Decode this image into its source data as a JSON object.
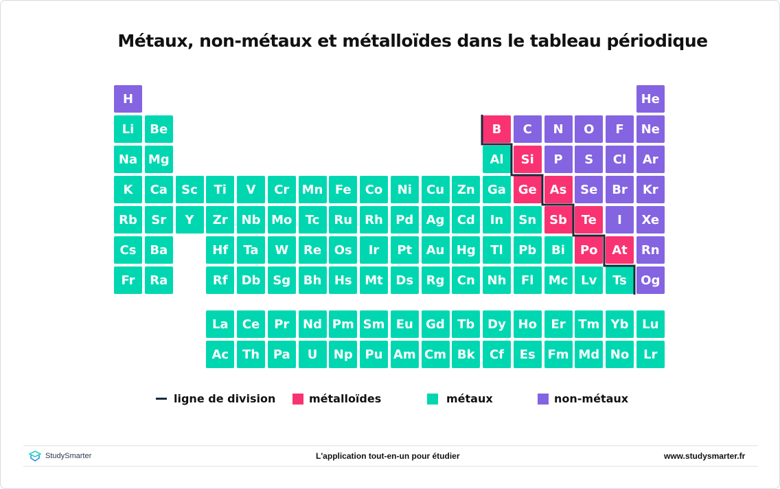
{
  "title": "Métaux, non-métaux et métalloïdes dans le tableau périodique",
  "colors": {
    "metal": "#00d7b1",
    "metalloid": "#f93371",
    "nonmetal": "#8464e1",
    "division_line": "#1b2a3c"
  },
  "rows": [
    [
      "H",
      "",
      "",
      "",
      "",
      "",
      "",
      "",
      "",
      "",
      "",
      "",
      "",
      "",
      "",
      "",
      "",
      "He"
    ],
    [
      "Li",
      "Be",
      "",
      "",
      "",
      "",
      "",
      "",
      "",
      "",
      "",
      "",
      "B",
      "C",
      "N",
      "O",
      "F",
      "Ne"
    ],
    [
      "Na",
      "Mg",
      "",
      "",
      "",
      "",
      "",
      "",
      "",
      "",
      "",
      "",
      "Al",
      "Si",
      "P",
      "S",
      "Cl",
      "Ar"
    ],
    [
      "K",
      "Ca",
      "Sc",
      "Ti",
      "V",
      "Cr",
      "Mn",
      "Fe",
      "Co",
      "Ni",
      "Cu",
      "Zn",
      "Ga",
      "Ge",
      "As",
      "Se",
      "Br",
      "Kr"
    ],
    [
      "Rb",
      "Sr",
      "Y",
      "Zr",
      "Nb",
      "Mo",
      "Tc",
      "Ru",
      "Rh",
      "Pd",
      "Ag",
      "Cd",
      "In",
      "Sn",
      "Sb",
      "Te",
      "I",
      "Xe"
    ],
    [
      "Cs",
      "Ba",
      "",
      "Hf",
      "Ta",
      "W",
      "Re",
      "Os",
      "Ir",
      "Pt",
      "Au",
      "Hg",
      "Tl",
      "Pb",
      "Bi",
      "Po",
      "At",
      "Rn"
    ],
    [
      "Fr",
      "Ra",
      "",
      "Rf",
      "Db",
      "Sg",
      "Bh",
      "Hs",
      "Mt",
      "Ds",
      "Rg",
      "Cn",
      "Nh",
      "Fl",
      "Mc",
      "Lv",
      "Ts",
      "Og"
    ]
  ],
  "f_block": [
    [
      "La",
      "Ce",
      "Pr",
      "Nd",
      "Pm",
      "Sm",
      "Eu",
      "Gd",
      "Tb",
      "Dy",
      "Ho",
      "Er",
      "Tm",
      "Yb",
      "Lu"
    ],
    [
      "Ac",
      "Th",
      "Pa",
      "U",
      "Np",
      "Pu",
      "Am",
      "Cm",
      "Bk",
      "Cf",
      "Es",
      "Fm",
      "Md",
      "No",
      "Lr"
    ]
  ],
  "metalloids": [
    "B",
    "Si",
    "Ge",
    "As",
    "Sb",
    "Te",
    "Po",
    "At"
  ],
  "nonmetals": [
    "H",
    "He",
    "C",
    "N",
    "O",
    "F",
    "Ne",
    "P",
    "S",
    "Cl",
    "Ar",
    "Se",
    "Br",
    "Kr",
    "I",
    "Xe",
    "Rn",
    "Og"
  ],
  "legend": {
    "division": "ligne de division",
    "metalloid": "métalloïdes",
    "metal": "métaux",
    "nonmetal": "non-métaux"
  },
  "footer": {
    "brand": "StudySmarter",
    "tagline": "L'application tout-en-un pour étudier",
    "url": "www.studysmarter.fr"
  }
}
